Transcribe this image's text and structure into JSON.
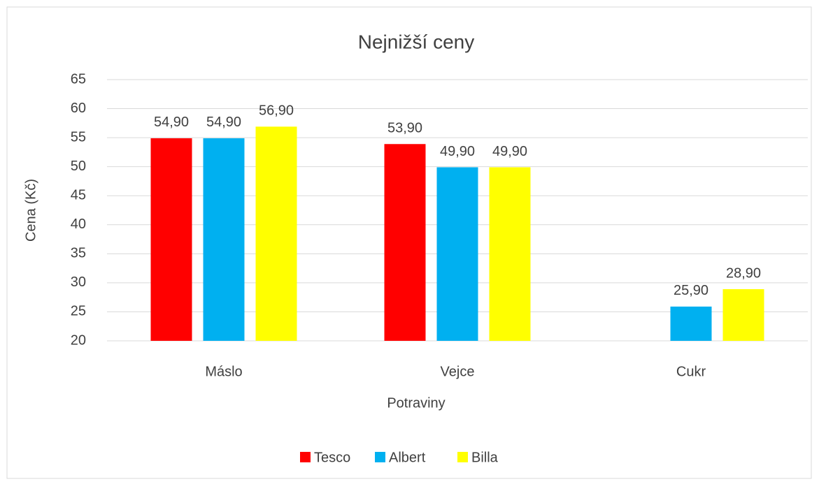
{
  "chart_data": {
    "type": "bar",
    "title": "Nejnižší ceny",
    "x_label": "Potraviny",
    "y_label": "Cena (Kč)",
    "categories": [
      "Máslo",
      "Vejce",
      "Cukr"
    ],
    "series": [
      {
        "name": "Tesco",
        "color": "#ff0000",
        "values": [
          54.9,
          53.9,
          null
        ],
        "value_labels": [
          "54,90",
          "53,90",
          null
        ]
      },
      {
        "name": "Albert",
        "color": "#00b0f0",
        "values": [
          54.9,
          49.9,
          25.9
        ],
        "value_labels": [
          "54,90",
          "49,90",
          "25,90"
        ]
      },
      {
        "name": "Billa",
        "color": "#ffff00",
        "values": [
          56.9,
          49.9,
          28.9
        ],
        "value_labels": [
          "56,90",
          "49,90",
          "28,90"
        ]
      }
    ],
    "ylim": [
      20,
      65
    ],
    "yticks": [
      20,
      25,
      30,
      35,
      40,
      45,
      50,
      55,
      60,
      65
    ],
    "grid": true,
    "legend": "bottom"
  }
}
